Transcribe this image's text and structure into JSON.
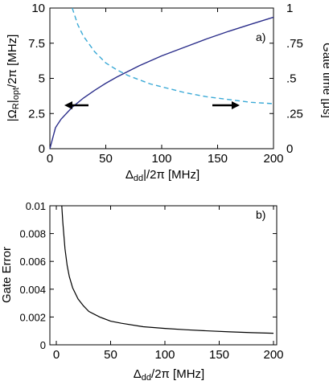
{
  "chart_data": [
    {
      "type": "line",
      "panel_label": "a)",
      "xlabel": "Δdd/2π [MHz]",
      "ylabel_left": "|ΩR|opt/2π [MHz]",
      "ylabel_right": "Gate time [μs]",
      "xlim": [
        0,
        200
      ],
      "ylim_left": [
        0,
        10
      ],
      "ylim_right": [
        0,
        1
      ],
      "x_ticks": [
        "0",
        "50",
        "100",
        "150",
        "200"
      ],
      "y_ticks_left": [
        "0",
        "2.5",
        "5",
        "7.5",
        "10"
      ],
      "y_ticks_right": [
        "0",
        ".25",
        ".5",
        ".75",
        "1"
      ],
      "grid": false,
      "series": [
        {
          "axis": "left",
          "style": "solid",
          "color": "#2a2d8a",
          "x": [
            0,
            5,
            10,
            20,
            30,
            40,
            50,
            60,
            70,
            80,
            90,
            100,
            120,
            140,
            160,
            180,
            200
          ],
          "y": [
            0,
            1.5,
            2.1,
            2.95,
            3.6,
            4.15,
            4.65,
            5.1,
            5.5,
            5.9,
            6.25,
            6.6,
            7.2,
            7.8,
            8.35,
            8.85,
            9.35
          ]
        },
        {
          "axis": "right",
          "style": "dashed",
          "color": "#3aa9d6",
          "x": [
            20,
            25,
            30,
            40,
            50,
            60,
            70,
            80,
            90,
            100,
            120,
            140,
            160,
            180,
            200
          ],
          "y": [
            1.0,
            0.88,
            0.8,
            0.69,
            0.61,
            0.56,
            0.52,
            0.49,
            0.46,
            0.44,
            0.4,
            0.37,
            0.35,
            0.33,
            0.32
          ]
        }
      ],
      "arrows": [
        {
          "direction": "left",
          "axis": "left"
        },
        {
          "direction": "right",
          "axis": "right"
        }
      ]
    },
    {
      "type": "line",
      "panel_label": "b)",
      "xlabel": "Δdd/2π [MHz]",
      "ylabel": "Gate Error",
      "xlim": [
        0,
        200
      ],
      "ylim": [
        0,
        0.01
      ],
      "x_ticks": [
        "0",
        "50",
        "100",
        "150",
        "200"
      ],
      "y_ticks": [
        "0",
        "0.002",
        "0.004",
        "0.006",
        "0.008",
        "0.01"
      ],
      "grid": false,
      "series": [
        {
          "style": "solid",
          "color": "#000000",
          "x": [
            5,
            6,
            8,
            10,
            12,
            15,
            20,
            25,
            30,
            40,
            50,
            60,
            80,
            100,
            120,
            140,
            160,
            180,
            200
          ],
          "y": [
            0.01,
            0.0088,
            0.0069,
            0.0057,
            0.0049,
            0.0041,
            0.0033,
            0.0028,
            0.0024,
            0.002,
            0.0017,
            0.00155,
            0.0013,
            0.00118,
            0.00108,
            0.001,
            0.00093,
            0.00087,
            0.00083
          ]
        }
      ]
    }
  ]
}
